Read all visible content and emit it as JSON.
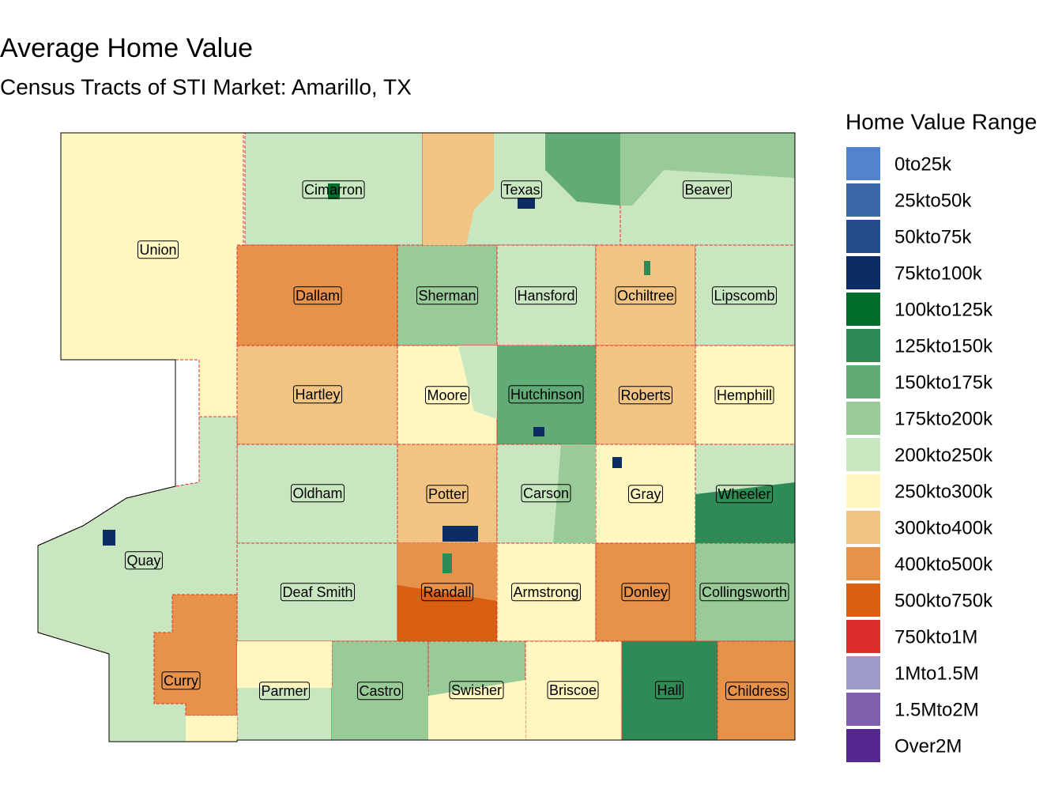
{
  "title": "Average Home Value",
  "subtitle": "Census Tracts of STI Market: Amarillo, TX",
  "legend": {
    "title": "Home Value Range",
    "items": [
      {
        "label": "0to25k",
        "color": "#5283cf"
      },
      {
        "label": "25kto50k",
        "color": "#3a68ab"
      },
      {
        "label": "50kto75k",
        "color": "#234d8a"
      },
      {
        "label": "75kto100k",
        "color": "#0c2c64"
      },
      {
        "label": "100kto125k",
        "color": "#006d2c"
      },
      {
        "label": "125kto150k",
        "color": "#2e8b55"
      },
      {
        "label": "150kto175k",
        "color": "#63ab76"
      },
      {
        "label": "175kto200k",
        "color": "#98cb98"
      },
      {
        "label": "200kto250k",
        "color": "#c8e7c1"
      },
      {
        "label": "250kto300k",
        "color": "#fff6c0"
      },
      {
        "label": "300kto400k",
        "color": "#f1c483"
      },
      {
        "label": "400kto500k",
        "color": "#e6924a"
      },
      {
        "label": "500kto750k",
        "color": "#db5f12"
      },
      {
        "label": "750kto1M",
        "color": "#dc2f2c"
      },
      {
        "label": "1Mto1.5M",
        "color": "#9e9ac8"
      },
      {
        "label": "1.5Mto2M",
        "color": "#7d5fab"
      },
      {
        "label": "Over2M",
        "color": "#54288f"
      }
    ]
  },
  "counties": [
    "Union",
    "Cimarron",
    "Texas",
    "Beaver",
    "Dallam",
    "Sherman",
    "Hansford",
    "Ochiltree",
    "Lipscomb",
    "Hartley",
    "Moore",
    "Hutchinson",
    "Roberts",
    "Hemphill",
    "Oldham",
    "Potter",
    "Carson",
    "Gray",
    "Wheeler",
    "Quay",
    "Deaf Smith",
    "Randall",
    "Armstrong",
    "Donley",
    "Collingsworth",
    "Curry",
    "Parmer",
    "Castro",
    "Swisher",
    "Briscoe",
    "Hall",
    "Childress"
  ]
}
